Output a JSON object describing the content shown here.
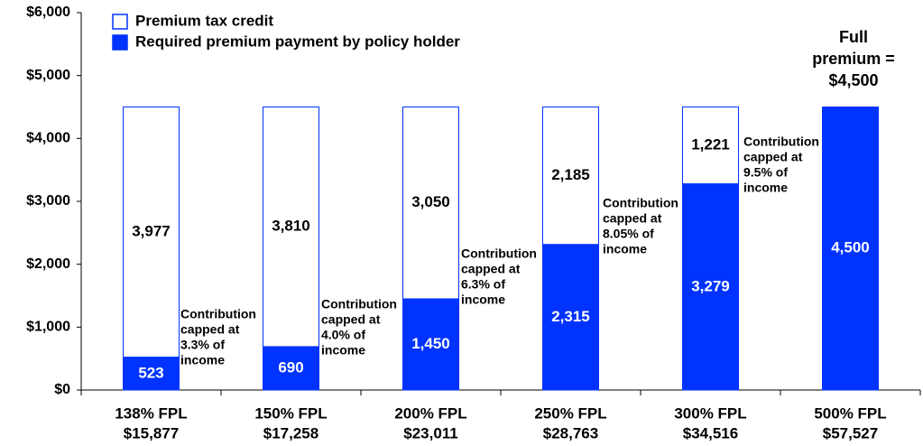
{
  "chart_data": {
    "type": "stacked-bar",
    "categories": [
      [
        "138% FPL",
        "$15,877"
      ],
      [
        "150% FPL",
        "$17,258"
      ],
      [
        "200% FPL",
        "$23,011"
      ],
      [
        "250% FPL",
        "$28,763"
      ],
      [
        "300% FPL",
        "$34,516"
      ],
      [
        "500% FPL",
        "$57,527"
      ]
    ],
    "series": [
      {
        "name": "Required premium payment by policy holder",
        "color": "#0033ff",
        "text_color": "#ffffff",
        "values": [
          523,
          690,
          1450,
          2315,
          3279,
          4500
        ],
        "value_labels": [
          "523",
          "690",
          "1,450",
          "2,315",
          "3,279",
          "4,500"
        ]
      },
      {
        "name": "Premium tax credit",
        "color": "#ffffff",
        "text_color": "#000000",
        "values": [
          3977,
          3810,
          3050,
          2185,
          1221,
          null
        ],
        "value_labels": [
          "3,977",
          "3,810",
          "3,050",
          "2,185",
          "1,221",
          null
        ]
      }
    ],
    "ylim": [
      0,
      6000
    ],
    "yticks": [
      {
        "value": 0,
        "label": "$0"
      },
      {
        "value": 1000,
        "label": "$1,000"
      },
      {
        "value": 2000,
        "label": "$2,000"
      },
      {
        "value": 3000,
        "label": "$3,000"
      },
      {
        "value": 4000,
        "label": "$4,000"
      },
      {
        "value": 5000,
        "label": "$5,000"
      },
      {
        "value": 6000,
        "label": "$6,000"
      }
    ],
    "annotations": [
      [
        "Contribution",
        "capped at",
        "3.3% of",
        "income"
      ],
      [
        "Contribution",
        "capped at",
        "4.0% of",
        "income"
      ],
      [
        "Contribution",
        "capped at",
        "6.3% of",
        "income"
      ],
      [
        "Contribution",
        "capped at",
        "8.05% of",
        "income"
      ],
      [
        "Contribution",
        "capped at",
        "9.5% of",
        "income"
      ],
      [
        "Full",
        "premium =",
        "$4,500"
      ]
    ]
  }
}
